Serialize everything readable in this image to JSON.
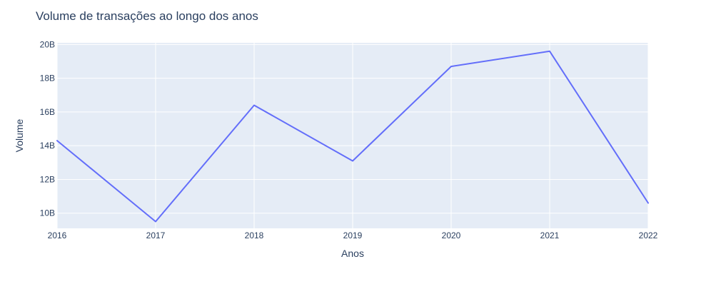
{
  "chart_data": {
    "type": "line",
    "title": "Volume de transações ao longo dos anos",
    "xlabel": "Anos",
    "ylabel": "Volume",
    "x": [
      2016,
      2017,
      2018,
      2019,
      2020,
      2021,
      2022
    ],
    "x_tick_labels": [
      "2016",
      "2017",
      "2018",
      "2019",
      "2020",
      "2021",
      "2022"
    ],
    "y_ticks": [
      10,
      12,
      14,
      16,
      18,
      20
    ],
    "y_tick_labels": [
      "10B",
      "12B",
      "14B",
      "16B",
      "18B",
      "20B"
    ],
    "y_unit": "billions",
    "ylim": [
      9.1,
      20.1
    ],
    "xlim": [
      2016,
      2022
    ],
    "grid": true,
    "series": [
      {
        "values": [
          14.3,
          9.5,
          16.4,
          13.1,
          18.7,
          19.6,
          10.6
        ]
      }
    ],
    "colors": {
      "plot_bg": "#e5ecf6",
      "grid": "#ffffff",
      "line": "#636efa",
      "text": "#2a3f5f"
    }
  }
}
